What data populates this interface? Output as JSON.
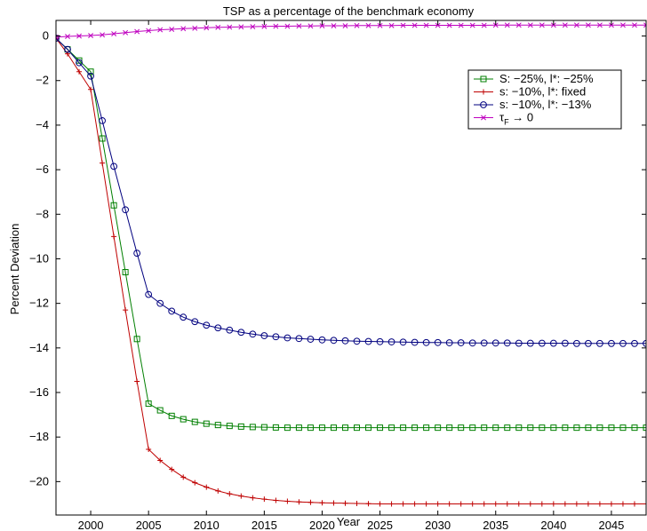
{
  "chart_data": {
    "type": "line",
    "title": "TSP as a percentage of the benchmark economy",
    "xlabel": "Year",
    "ylabel": "Percent Deviation",
    "xlim": [
      1997,
      2048
    ],
    "ylim": [
      -21.5,
      0.7
    ],
    "xticks": [
      2000,
      2005,
      2010,
      2015,
      2020,
      2025,
      2030,
      2035,
      2040,
      2045
    ],
    "yticks": [
      0,
      -2,
      -4,
      -6,
      -8,
      -10,
      -12,
      -14,
      -16,
      -18,
      -20
    ],
    "xtick_labels": [
      "2000",
      "2005",
      "2010",
      "2015",
      "2020",
      "2025",
      "2030",
      "2035",
      "2040",
      "2045"
    ],
    "ytick_labels": [
      "0",
      "−2",
      "−4",
      "−6",
      "−8",
      "−10",
      "−12",
      "−14",
      "−16",
      "−18",
      "−20"
    ],
    "grid": false,
    "legend_position": "top-right",
    "x": [
      1997,
      1998,
      1999,
      2000,
      2001,
      2002,
      2003,
      2004,
      2005,
      2006,
      2007,
      2008,
      2009,
      2010,
      2011,
      2012,
      2013,
      2014,
      2015,
      2016,
      2017,
      2018,
      2019,
      2020,
      2021,
      2022,
      2023,
      2024,
      2025,
      2026,
      2027,
      2028,
      2029,
      2030,
      2031,
      2032,
      2033,
      2034,
      2035,
      2036,
      2037,
      2038,
      2039,
      2040,
      2041,
      2042,
      2043,
      2044,
      2045,
      2046,
      2047,
      2048
    ],
    "series": [
      {
        "name": "S: −25%, l*: −25%",
        "color": "#007f00",
        "marker": "square",
        "values": [
          -0.1,
          -0.6,
          -1.1,
          -1.6,
          -4.6,
          -7.6,
          -10.6,
          -13.6,
          -16.5,
          -16.8,
          -17.05,
          -17.2,
          -17.32,
          -17.4,
          -17.46,
          -17.5,
          -17.53,
          -17.55,
          -17.56,
          -17.57,
          -17.58,
          -17.58,
          -17.58,
          -17.58,
          -17.58,
          -17.58,
          -17.58,
          -17.58,
          -17.58,
          -17.58,
          -17.58,
          -17.58,
          -17.58,
          -17.58,
          -17.58,
          -17.58,
          -17.58,
          -17.58,
          -17.58,
          -17.58,
          -17.58,
          -17.58,
          -17.58,
          -17.58,
          -17.58,
          -17.58,
          -17.58,
          -17.58,
          -17.58,
          -17.58,
          -17.58,
          -17.58
        ]
      },
      {
        "name": "s: −10%, l*: fixed",
        "color": "#bf0000",
        "marker": "plus",
        "values": [
          -0.1,
          -0.8,
          -1.6,
          -2.4,
          -5.7,
          -9.0,
          -12.3,
          -15.5,
          -18.55,
          -19.05,
          -19.45,
          -19.8,
          -20.05,
          -20.25,
          -20.42,
          -20.55,
          -20.65,
          -20.73,
          -20.79,
          -20.84,
          -20.88,
          -20.91,
          -20.93,
          -20.95,
          -20.96,
          -20.97,
          -20.98,
          -20.99,
          -21.0,
          -21.0,
          -21.0,
          -21.0,
          -21.0,
          -21.0,
          -21.0,
          -21.0,
          -21.0,
          -21.0,
          -21.0,
          -21.0,
          -21.0,
          -21.0,
          -21.0,
          -21.0,
          -21.0,
          -21.0,
          -21.0,
          -21.0,
          -21.0,
          -21.0,
          -21.0,
          -21.0
        ]
      },
      {
        "name": "s: −10%, l*: −13%",
        "color": "#00007f",
        "marker": "circle",
        "values": [
          -0.1,
          -0.6,
          -1.2,
          -1.8,
          -3.8,
          -5.85,
          -7.8,
          -9.75,
          -11.6,
          -12.0,
          -12.35,
          -12.62,
          -12.82,
          -12.98,
          -13.1,
          -13.2,
          -13.3,
          -13.38,
          -13.45,
          -13.5,
          -13.55,
          -13.58,
          -13.61,
          -13.64,
          -13.66,
          -13.68,
          -13.7,
          -13.71,
          -13.72,
          -13.73,
          -13.74,
          -13.75,
          -13.76,
          -13.76,
          -13.77,
          -13.77,
          -13.78,
          -13.78,
          -13.78,
          -13.78,
          -13.79,
          -13.79,
          -13.79,
          -13.79,
          -13.79,
          -13.8,
          -13.8,
          -13.8,
          -13.8,
          -13.8,
          -13.8,
          -13.8
        ]
      },
      {
        "name_prefix": "τ",
        "name_sub": "F",
        "name_suffix": " → 0",
        "color": "#bf00bf",
        "marker": "x",
        "values": [
          -0.05,
          -0.02,
          0.0,
          0.02,
          0.05,
          0.1,
          0.15,
          0.2,
          0.24,
          0.28,
          0.3,
          0.33,
          0.35,
          0.37,
          0.39,
          0.4,
          0.41,
          0.42,
          0.43,
          0.44,
          0.44,
          0.45,
          0.45,
          0.46,
          0.46,
          0.46,
          0.47,
          0.47,
          0.47,
          0.47,
          0.48,
          0.48,
          0.48,
          0.48,
          0.48,
          0.48,
          0.48,
          0.48,
          0.49,
          0.49,
          0.49,
          0.49,
          0.49,
          0.49,
          0.49,
          0.49,
          0.49,
          0.49,
          0.49,
          0.49,
          0.49,
          0.49
        ]
      }
    ]
  }
}
